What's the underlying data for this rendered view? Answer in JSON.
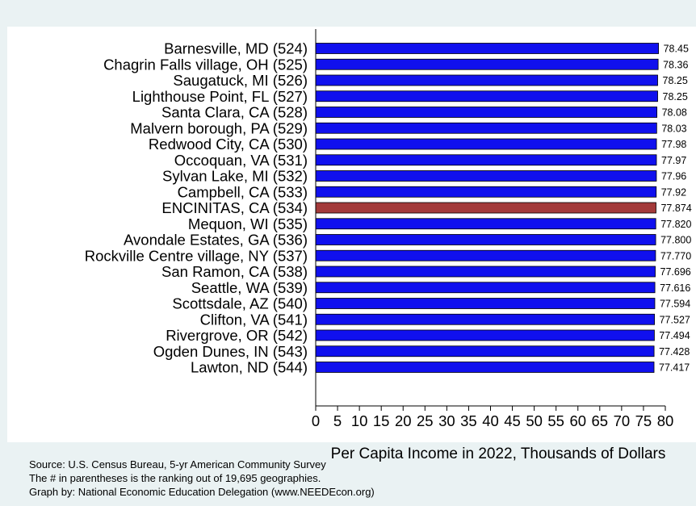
{
  "chart_data": {
    "type": "bar",
    "orientation": "horizontal",
    "title": "",
    "xlabel": "Per Capita Income in 2022, Thousands of Dollars",
    "ylabel": "",
    "xlim": [
      0,
      80
    ],
    "x_ticks": [
      "0",
      "5",
      "10",
      "15",
      "20",
      "25",
      "30",
      "35",
      "40",
      "45",
      "50",
      "55",
      "60",
      "65",
      "70",
      "75",
      "80"
    ],
    "grid": false,
    "categories": [
      "Barnesville, MD (524)",
      "Chagrin Falls village, OH (525)",
      "Saugatuck, MI (526)",
      "Lighthouse Point, FL (527)",
      "Santa Clara, CA (528)",
      "Malvern borough, PA (529)",
      "Redwood City, CA (530)",
      "Occoquan, VA (531)",
      "Sylvan Lake, MI (532)",
      "Campbell, CA (533)",
      "ENCINITAS, CA (534)",
      "Mequon, WI (535)",
      "Avondale Estates, GA (536)",
      "Rockville Centre village, NY (537)",
      "San Ramon, CA (538)",
      "Seattle, WA (539)",
      "Scottsdale, AZ (540)",
      "Clifton, VA (541)",
      "Rivergrove, OR (542)",
      "Ogden Dunes, IN (543)",
      "Lawton, ND (544)"
    ],
    "values": [
      78.45,
      78.36,
      78.25,
      78.25,
      78.08,
      78.03,
      77.98,
      77.97,
      77.96,
      77.92,
      77.874,
      77.82,
      77.8,
      77.77,
      77.696,
      77.616,
      77.594,
      77.527,
      77.494,
      77.428,
      77.417
    ],
    "value_labels": [
      "78.45",
      "78.36",
      "78.25",
      "78.25",
      "78.08",
      "78.03",
      "77.98",
      "77.97",
      "77.96",
      "77.92",
      "77.874",
      "77.820",
      "77.800",
      "77.770",
      "77.696",
      "77.616",
      "77.594",
      "77.527",
      "77.494",
      "77.428",
      "77.417"
    ],
    "highlight_index": 10,
    "colors": {
      "bar": "#1010ee",
      "highlight": "#a33a3a",
      "plot_bg": "#ffffff",
      "page_bg": "#eaf2f3"
    }
  },
  "notes": {
    "source": "Source: U.S. Census Bureau, 5-yr American Community Survey",
    "ranking": "The # in parentheses is the ranking out of 19,695 geographies.",
    "credit": "Graph by: National Economic Education Delegation (www.NEEDEcon.org)"
  }
}
